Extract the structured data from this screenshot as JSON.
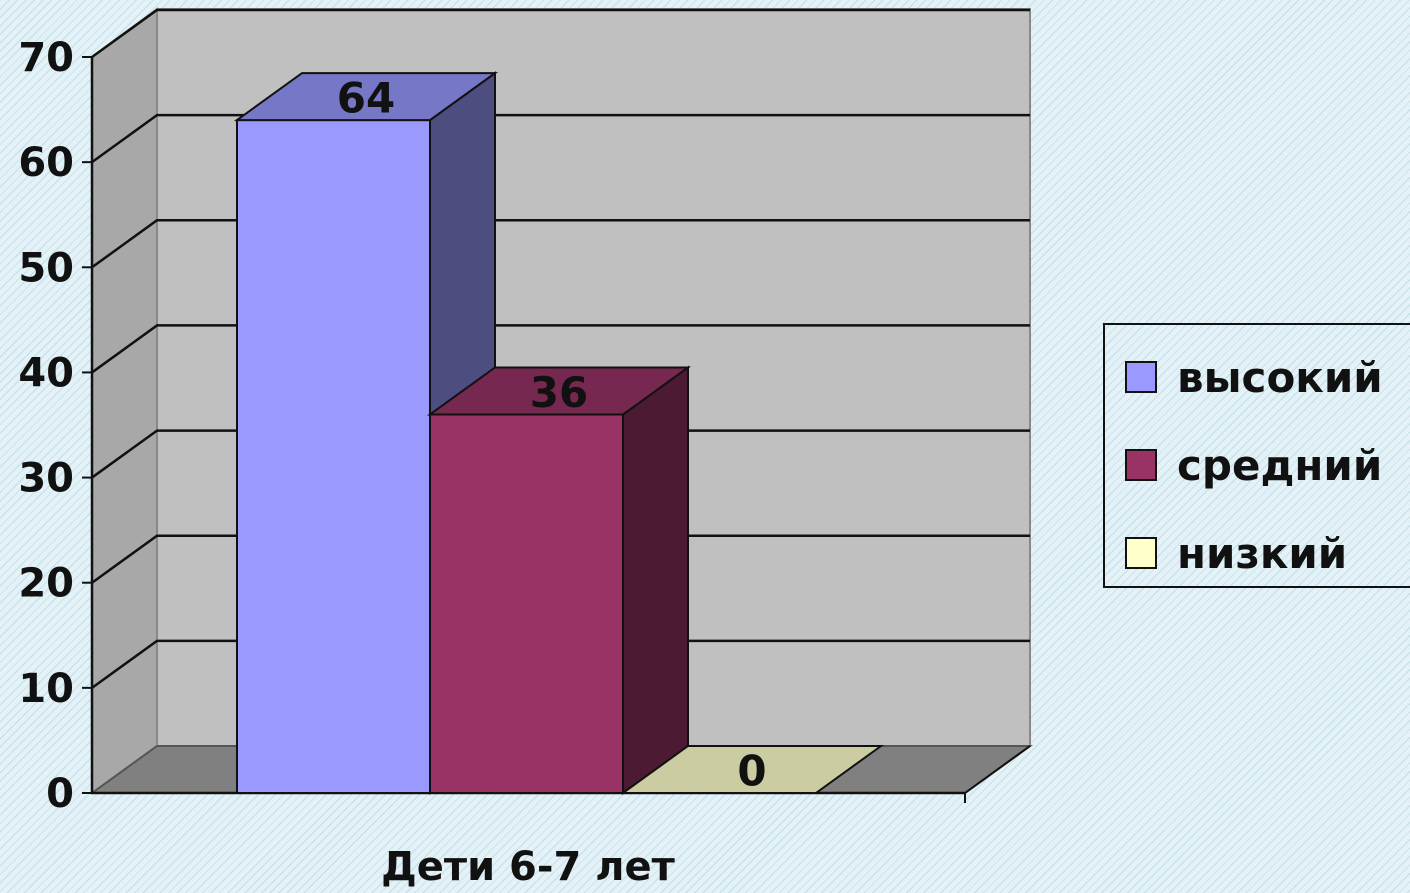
{
  "chart_data": {
    "type": "bar",
    "categories": [
      "Дети 6-7 лет"
    ],
    "series": [
      {
        "name": "высокий",
        "values": [
          64
        ],
        "color": "#9999ff"
      },
      {
        "name": "средний",
        "values": [
          36
        ],
        "color": "#993366"
      },
      {
        "name": "низкий",
        "values": [
          0
        ],
        "color": "#ffffcc"
      }
    ],
    "ylim": [
      0,
      70
    ],
    "yticks": [
      0,
      10,
      20,
      30,
      40,
      50,
      60,
      70
    ],
    "grid": true,
    "legend_position": "right",
    "style": "3d-clustered-column"
  }
}
